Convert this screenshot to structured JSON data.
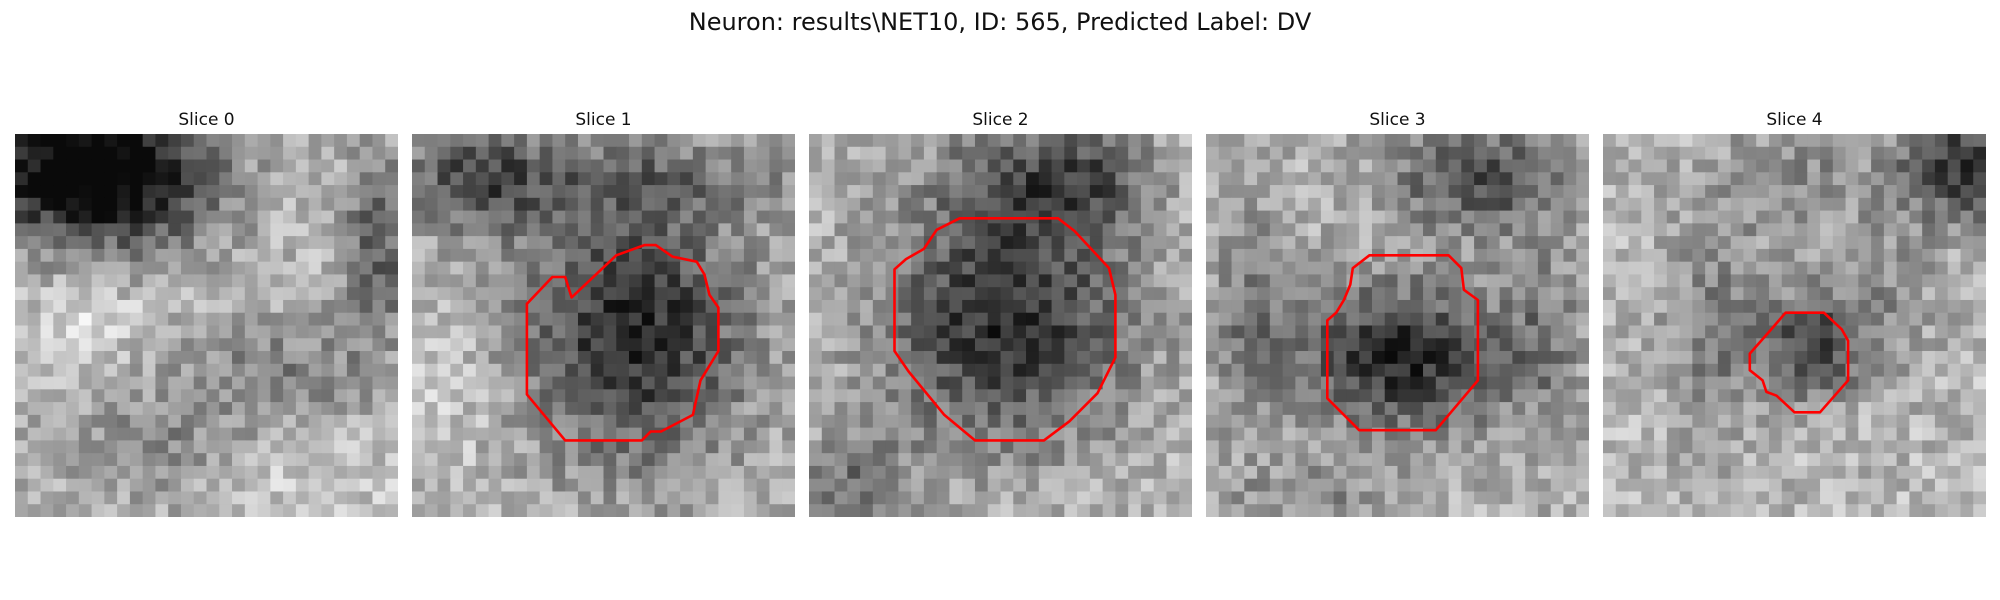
{
  "figure": {
    "title": "Neuron: results\\NET10, ID: 565, Predicted Label: DV"
  },
  "slices": [
    {
      "title": "Slice 0"
    },
    {
      "title": "Slice 1"
    },
    {
      "title": "Slice 2"
    },
    {
      "title": "Slice 3"
    },
    {
      "title": "Slice 4"
    }
  ],
  "colors": {
    "contour": "#ff0000",
    "background": "#ffffff"
  }
}
